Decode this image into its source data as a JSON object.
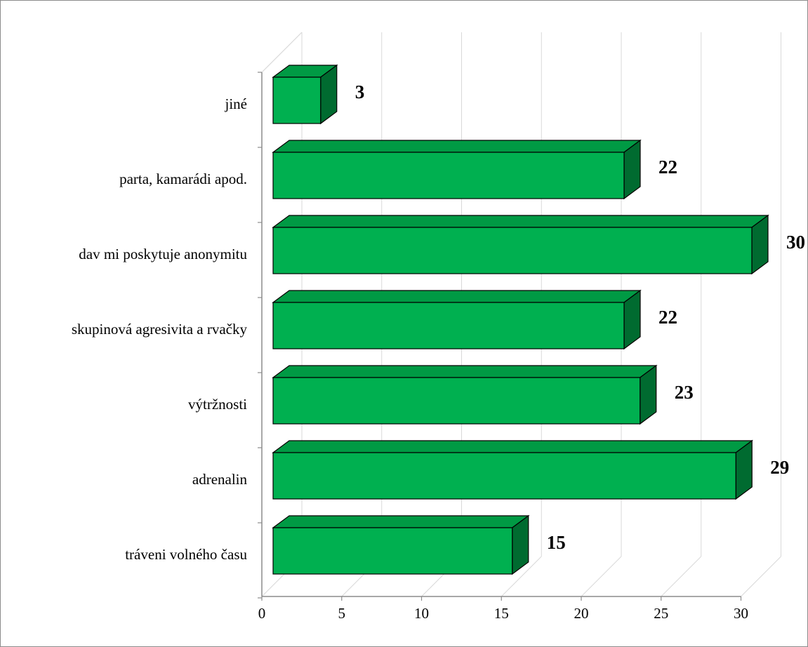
{
  "chart_data": {
    "type": "bar",
    "orientation": "horizontal",
    "style": "3d",
    "categories": [
      "jiné",
      "parta, kamarádi apod.",
      "dav mi poskytuje anonymitu",
      "skupinová agresivita a rvačky",
      "výtržnosti",
      "adrenalin",
      "tráveni volného času"
    ],
    "values": [
      3,
      22,
      30,
      22,
      23,
      29,
      15
    ],
    "data_labels": [
      "3",
      "22",
      "30",
      "22",
      "23",
      "29",
      "15"
    ],
    "xticks": [
      "0",
      "5",
      "10",
      "15",
      "20",
      "25",
      "30"
    ],
    "xlim": [
      0,
      30
    ],
    "grid": true,
    "legend": "none",
    "colors": {
      "bar_front": "#00b050",
      "bar_top": "#009a44",
      "bar_side": "#006b30",
      "outline": "#000000",
      "grid": "#d9d9d9",
      "frame": "#8c8c8c"
    }
  }
}
